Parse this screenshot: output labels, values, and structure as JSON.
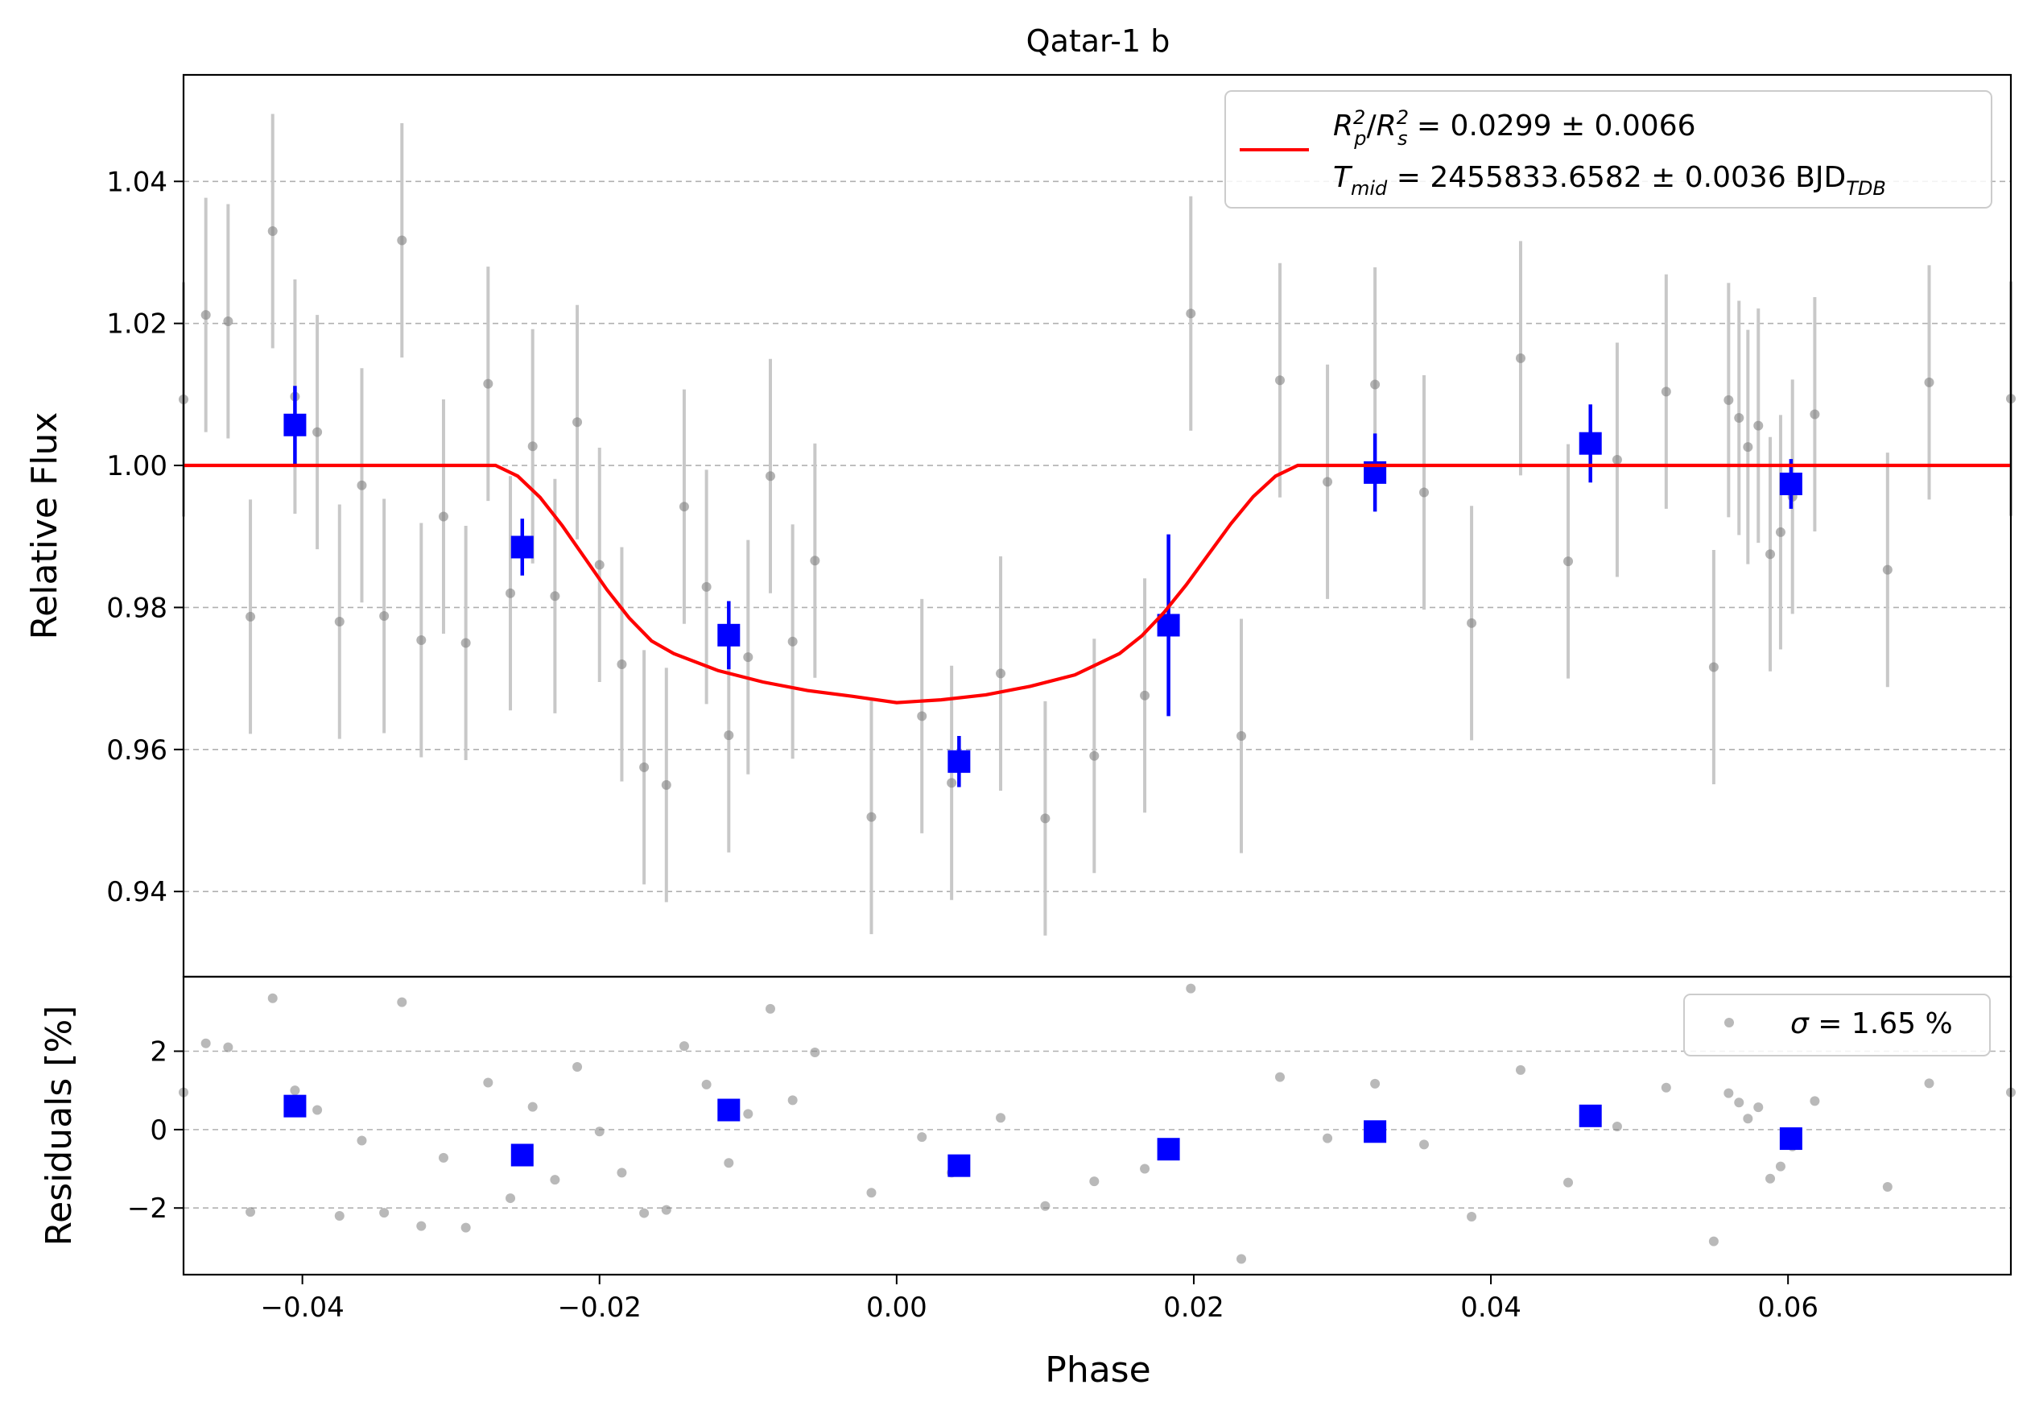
{
  "chart_data": [
    {
      "type": "scatter",
      "panel": "top",
      "title": "Qatar-1 b",
      "xlabel": "",
      "ylabel": "Relative Flux",
      "xlim": [
        -0.048,
        0.075
      ],
      "ylim": [
        0.928,
        1.055
      ],
      "yticks": [
        0.94,
        0.96,
        0.98,
        1.0,
        1.02,
        1.04
      ],
      "ytick_labels": [
        "0.94",
        "0.96",
        "0.98",
        "1.00",
        "1.02",
        "1.04"
      ],
      "grid": "y-dashed",
      "legend_position": "top-right",
      "legend": {
        "line1": {
          "a": "R",
          "a_sub": "p",
          "a_sup": "2",
          "slash": "/",
          "b": "R",
          "b_sub": "s",
          "b_sup": "2",
          "value": " = 0.0299 ± 0.0066"
        },
        "line2": {
          "a": "T",
          "a_sub": "mid",
          "value": " = 2455833.6582 ± 0.0036 BJD",
          "unit_sub": "TDB"
        }
      },
      "colors": {
        "raw": "#808080",
        "raw_err": "#c8c8c8",
        "binned": "#0000ff",
        "model": "#ff0000",
        "grid": "#b0b0b0"
      },
      "raw_points": [
        {
          "x": -0.048,
          "y": 1.0093,
          "err": 0.0165
        },
        {
          "x": -0.0465,
          "y": 1.0212,
          "err": 0.0165
        },
        {
          "x": -0.045,
          "y": 1.0203,
          "err": 0.0165
        },
        {
          "x": -0.0435,
          "y": 0.9787,
          "err": 0.0165
        },
        {
          "x": -0.042,
          "y": 1.033,
          "err": 0.0165
        },
        {
          "x": -0.0405,
          "y": 1.0097,
          "err": 0.0165
        },
        {
          "x": -0.039,
          "y": 1.0047,
          "err": 0.0165
        },
        {
          "x": -0.0375,
          "y": 0.978,
          "err": 0.0165
        },
        {
          "x": -0.036,
          "y": 0.9972,
          "err": 0.0165
        },
        {
          "x": -0.0345,
          "y": 0.9788,
          "err": 0.0165
        },
        {
          "x": -0.0333,
          "y": 1.0317,
          "err": 0.0165
        },
        {
          "x": -0.032,
          "y": 0.9754,
          "err": 0.0165
        },
        {
          "x": -0.0305,
          "y": 0.9928,
          "err": 0.0165
        },
        {
          "x": -0.029,
          "y": 0.975,
          "err": 0.0165
        },
        {
          "x": -0.0275,
          "y": 1.0115,
          "err": 0.0165
        },
        {
          "x": -0.026,
          "y": 0.982,
          "err": 0.0165
        },
        {
          "x": -0.0245,
          "y": 1.0027,
          "err": 0.0165
        },
        {
          "x": -0.023,
          "y": 0.9816,
          "err": 0.0165
        },
        {
          "x": -0.0215,
          "y": 1.0061,
          "err": 0.0165
        },
        {
          "x": -0.02,
          "y": 0.986,
          "err": 0.0165
        },
        {
          "x": -0.0185,
          "y": 0.972,
          "err": 0.0165
        },
        {
          "x": -0.017,
          "y": 0.9575,
          "err": 0.0165
        },
        {
          "x": -0.0155,
          "y": 0.955,
          "err": 0.0165
        },
        {
          "x": -0.0143,
          "y": 0.9942,
          "err": 0.0165
        },
        {
          "x": -0.0128,
          "y": 0.9829,
          "err": 0.0165
        },
        {
          "x": -0.0113,
          "y": 0.962,
          "err": 0.0165
        },
        {
          "x": -0.01,
          "y": 0.973,
          "err": 0.0165
        },
        {
          "x": -0.0085,
          "y": 0.9985,
          "err": 0.0165
        },
        {
          "x": -0.007,
          "y": 0.9752,
          "err": 0.0165
        },
        {
          "x": -0.0055,
          "y": 0.9866,
          "err": 0.0165
        },
        {
          "x": -0.0017,
          "y": 0.9505,
          "err": 0.0165
        },
        {
          "x": 0.0017,
          "y": 0.9647,
          "err": 0.0165
        },
        {
          "x": 0.0037,
          "y": 0.9553,
          "err": 0.0165
        },
        {
          "x": 0.007,
          "y": 0.9707,
          "err": 0.0165
        },
        {
          "x": 0.01,
          "y": 0.9503,
          "err": 0.0165
        },
        {
          "x": 0.0133,
          "y": 0.9591,
          "err": 0.0165
        },
        {
          "x": 0.0167,
          "y": 0.9676,
          "err": 0.0165
        },
        {
          "x": 0.0198,
          "y": 1.0214,
          "err": 0.0165
        },
        {
          "x": 0.0232,
          "y": 0.9619,
          "err": 0.0165
        },
        {
          "x": 0.0258,
          "y": 1.012,
          "err": 0.0165
        },
        {
          "x": 0.029,
          "y": 0.9977,
          "err": 0.0165
        },
        {
          "x": 0.0322,
          "y": 1.0114,
          "err": 0.0165
        },
        {
          "x": 0.0355,
          "y": 0.9962,
          "err": 0.0165
        },
        {
          "x": 0.0387,
          "y": 0.9778,
          "err": 0.0165
        },
        {
          "x": 0.042,
          "y": 1.0151,
          "err": 0.0165
        },
        {
          "x": 0.0452,
          "y": 0.9865,
          "err": 0.0165
        },
        {
          "x": 0.0485,
          "y": 1.0008,
          "err": 0.0165
        },
        {
          "x": 0.0518,
          "y": 1.0104,
          "err": 0.0165
        },
        {
          "x": 0.055,
          "y": 0.9716,
          "err": 0.0165
        },
        {
          "x": 0.056,
          "y": 1.0092,
          "err": 0.0165
        },
        {
          "x": 0.0567,
          "y": 1.0067,
          "err": 0.0165
        },
        {
          "x": 0.0573,
          "y": 1.0026,
          "err": 0.0165
        },
        {
          "x": 0.058,
          "y": 1.0056,
          "err": 0.0165
        },
        {
          "x": 0.0588,
          "y": 0.9875,
          "err": 0.0165
        },
        {
          "x": 0.0595,
          "y": 0.9906,
          "err": 0.0165
        },
        {
          "x": 0.0603,
          "y": 0.9956,
          "err": 0.0165
        },
        {
          "x": 0.0618,
          "y": 1.0072,
          "err": 0.0165
        },
        {
          "x": 0.0667,
          "y": 0.9853,
          "err": 0.0165
        },
        {
          "x": 0.0695,
          "y": 1.0117,
          "err": 0.0165
        },
        {
          "x": 0.075,
          "y": 1.0094,
          "err": 0.0165
        }
      ],
      "binned_points": [
        {
          "x": -0.0405,
          "y": 1.0057,
          "err": 0.0055
        },
        {
          "x": -0.0252,
          "y": 0.9885,
          "err": 0.004
        },
        {
          "x": -0.0113,
          "y": 0.9761,
          "err": 0.0048
        },
        {
          "x": 0.0042,
          "y": 0.9583,
          "err": 0.0036
        },
        {
          "x": 0.0183,
          "y": 0.9775,
          "err": 0.0128
        },
        {
          "x": 0.0322,
          "y": 0.999,
          "err": 0.0055
        },
        {
          "x": 0.0467,
          "y": 1.0031,
          "err": 0.0055
        },
        {
          "x": 0.0602,
          "y": 0.9974,
          "err": 0.0035
        }
      ],
      "model_curve": [
        {
          "x": -0.048,
          "y": 1.0
        },
        {
          "x": -0.027,
          "y": 1.0
        },
        {
          "x": -0.0255,
          "y": 0.9985
        },
        {
          "x": -0.024,
          "y": 0.9955
        },
        {
          "x": -0.0225,
          "y": 0.9915
        },
        {
          "x": -0.021,
          "y": 0.987
        },
        {
          "x": -0.0195,
          "y": 0.9825
        },
        {
          "x": -0.018,
          "y": 0.9785
        },
        {
          "x": -0.0165,
          "y": 0.9753
        },
        {
          "x": -0.015,
          "y": 0.9735
        },
        {
          "x": -0.012,
          "y": 0.9711
        },
        {
          "x": -0.009,
          "y": 0.9695
        },
        {
          "x": -0.006,
          "y": 0.9683
        },
        {
          "x": -0.003,
          "y": 0.9675
        },
        {
          "x": 0.0,
          "y": 0.9666
        },
        {
          "x": 0.003,
          "y": 0.967
        },
        {
          "x": 0.006,
          "y": 0.9677
        },
        {
          "x": 0.009,
          "y": 0.9689
        },
        {
          "x": 0.012,
          "y": 0.9705
        },
        {
          "x": 0.015,
          "y": 0.9735
        },
        {
          "x": 0.0165,
          "y": 0.976
        },
        {
          "x": 0.018,
          "y": 0.9793
        },
        {
          "x": 0.0195,
          "y": 0.9832
        },
        {
          "x": 0.021,
          "y": 0.9875
        },
        {
          "x": 0.0225,
          "y": 0.9918
        },
        {
          "x": 0.024,
          "y": 0.9956
        },
        {
          "x": 0.0255,
          "y": 0.9985
        },
        {
          "x": 0.027,
          "y": 1.0
        },
        {
          "x": 0.075,
          "y": 1.0
        }
      ]
    },
    {
      "type": "scatter",
      "panel": "bottom",
      "xlabel": "Phase",
      "ylabel": "Residuals [%]",
      "xlim": [
        -0.048,
        0.075
      ],
      "ylim": [
        -3.7,
        3.9
      ],
      "xticks": [
        -0.04,
        -0.02,
        0.0,
        0.02,
        0.04,
        0.06
      ],
      "xtick_labels": [
        "−0.04",
        "−0.02",
        "0.00",
        "0.02",
        "0.04",
        "0.06"
      ],
      "yticks": [
        -2,
        0,
        2
      ],
      "ytick_labels": [
        "−2",
        "0",
        "2"
      ],
      "grid": "y-dashed",
      "legend_position": "top-right",
      "legend": {
        "sigma": "σ",
        "value": " = 1.65 %"
      },
      "residual_points": [
        {
          "x": -0.048,
          "y": 0.95
        },
        {
          "x": -0.0465,
          "y": 2.2
        },
        {
          "x": -0.045,
          "y": 2.1
        },
        {
          "x": -0.0435,
          "y": -2.1
        },
        {
          "x": -0.042,
          "y": 3.35
        },
        {
          "x": -0.0405,
          "y": 1.0
        },
        {
          "x": -0.039,
          "y": 0.5
        },
        {
          "x": -0.0375,
          "y": -2.2
        },
        {
          "x": -0.036,
          "y": -0.28
        },
        {
          "x": -0.0345,
          "y": -2.12
        },
        {
          "x": -0.0333,
          "y": 3.25
        },
        {
          "x": -0.032,
          "y": -2.46
        },
        {
          "x": -0.0305,
          "y": -0.72
        },
        {
          "x": -0.029,
          "y": -2.5
        },
        {
          "x": -0.0275,
          "y": 1.2
        },
        {
          "x": -0.026,
          "y": -1.75
        },
        {
          "x": -0.0245,
          "y": 0.58
        },
        {
          "x": -0.023,
          "y": -1.28
        },
        {
          "x": -0.0215,
          "y": 1.6
        },
        {
          "x": -0.02,
          "y": -0.05
        },
        {
          "x": -0.0185,
          "y": -1.1
        },
        {
          "x": -0.017,
          "y": -2.13
        },
        {
          "x": -0.0155,
          "y": -2.05
        },
        {
          "x": -0.0143,
          "y": 2.13
        },
        {
          "x": -0.0128,
          "y": 1.15
        },
        {
          "x": -0.0113,
          "y": -0.85
        },
        {
          "x": -0.01,
          "y": 0.4
        },
        {
          "x": -0.0085,
          "y": 3.08
        },
        {
          "x": -0.007,
          "y": 0.75
        },
        {
          "x": -0.0055,
          "y": 1.97
        },
        {
          "x": -0.0017,
          "y": -1.61
        },
        {
          "x": 0.0017,
          "y": -0.19
        },
        {
          "x": 0.0037,
          "y": -1.1
        },
        {
          "x": 0.007,
          "y": 0.3
        },
        {
          "x": 0.01,
          "y": -1.95
        },
        {
          "x": 0.0133,
          "y": -1.32
        },
        {
          "x": 0.0167,
          "y": -1.0
        },
        {
          "x": 0.0198,
          "y": 3.6
        },
        {
          "x": 0.0232,
          "y": -3.3
        },
        {
          "x": 0.0258,
          "y": 1.34
        },
        {
          "x": 0.029,
          "y": -0.22
        },
        {
          "x": 0.0322,
          "y": 1.17
        },
        {
          "x": 0.0355,
          "y": -0.38
        },
        {
          "x": 0.0387,
          "y": -2.22
        },
        {
          "x": 0.042,
          "y": 1.52
        },
        {
          "x": 0.0452,
          "y": -1.35
        },
        {
          "x": 0.0485,
          "y": 0.08
        },
        {
          "x": 0.0518,
          "y": 1.07
        },
        {
          "x": 0.055,
          "y": -2.85
        },
        {
          "x": 0.056,
          "y": 0.93
        },
        {
          "x": 0.0567,
          "y": 0.69
        },
        {
          "x": 0.0573,
          "y": 0.28
        },
        {
          "x": 0.058,
          "y": 0.57
        },
        {
          "x": 0.0588,
          "y": -1.25
        },
        {
          "x": 0.0595,
          "y": -0.94
        },
        {
          "x": 0.0603,
          "y": -0.43
        },
        {
          "x": 0.0618,
          "y": 0.73
        },
        {
          "x": 0.0667,
          "y": -1.46
        },
        {
          "x": 0.0695,
          "y": 1.18
        },
        {
          "x": 0.075,
          "y": 0.95
        }
      ],
      "binned_residuals": [
        {
          "x": -0.0405,
          "y": 0.6
        },
        {
          "x": -0.0252,
          "y": -0.65
        },
        {
          "x": -0.0113,
          "y": 0.5
        },
        {
          "x": 0.0042,
          "y": -0.92
        },
        {
          "x": 0.0183,
          "y": -0.5
        },
        {
          "x": 0.0322,
          "y": -0.05
        },
        {
          "x": 0.0467,
          "y": 0.35
        },
        {
          "x": 0.0602,
          "y": -0.23
        }
      ]
    }
  ]
}
